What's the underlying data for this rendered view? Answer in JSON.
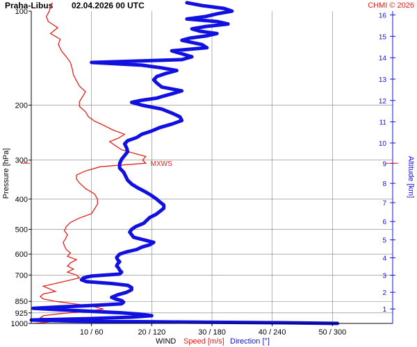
{
  "header": {
    "station": "Praha-Libus",
    "datetime": "02.04.2026 00 UTC",
    "copyright": "CHMI © 2026"
  },
  "colors": {
    "speed": "#e0201c",
    "direction": "#1010e0",
    "grid": "#7d7d7d",
    "frame": "#000000"
  },
  "chart_data": {
    "type": "line",
    "ylabel": "Pressure [hPa]",
    "y2label": "Altitude [km]",
    "xlabel": {
      "wind": "WIND",
      "speed": "Speed [m/s]",
      "direction": "Direction [°]"
    },
    "pressure_ticks": [
      "100",
      "200",
      "300",
      "400",
      "500",
      "600",
      "700",
      "850",
      "925",
      "1000"
    ],
    "x_ticks": [
      "10 / 60",
      "20 / 120",
      "30 / 180",
      "40 / 240",
      "50 / 300"
    ],
    "altitude_ticks": [
      "1",
      "2",
      "3",
      "4",
      "5",
      "6",
      "7",
      "8",
      "9",
      "10",
      "11",
      "12",
      "13",
      "14",
      "15",
      "16"
    ],
    "speed_xlim": [
      0,
      60
    ],
    "direction_xlim": [
      0,
      360
    ],
    "annotation": {
      "text": "MXWS",
      "pressure": 307,
      "speed": 19
    },
    "series": [
      {
        "name": "Speed [m/s]",
        "points": [
          [
            1000,
            0.5
          ],
          [
            990,
            3
          ],
          [
            975,
            4
          ],
          [
            960,
            1.5
          ],
          [
            945,
            2
          ],
          [
            930,
            5
          ],
          [
            915,
            9
          ],
          [
            900,
            12
          ],
          [
            880,
            10
          ],
          [
            865,
            7
          ],
          [
            850,
            4
          ],
          [
            835,
            2
          ],
          [
            820,
            1.5
          ],
          [
            805,
            2
          ],
          [
            790,
            4
          ],
          [
            775,
            3
          ],
          [
            760,
            2
          ],
          [
            745,
            4
          ],
          [
            730,
            6
          ],
          [
            715,
            8
          ],
          [
            700,
            7.5
          ],
          [
            685,
            6
          ],
          [
            670,
            7
          ],
          [
            655,
            6
          ],
          [
            640,
            6.5
          ],
          [
            625,
            7.5
          ],
          [
            610,
            6
          ],
          [
            595,
            6.5
          ],
          [
            580,
            5.8
          ],
          [
            565,
            5.5
          ],
          [
            550,
            5.3
          ],
          [
            535,
            5.7
          ],
          [
            520,
            6
          ],
          [
            505,
            5.5
          ],
          [
            490,
            5.8
          ],
          [
            475,
            6.5
          ],
          [
            460,
            8
          ],
          [
            445,
            10
          ],
          [
            430,
            10.5
          ],
          [
            415,
            11
          ],
          [
            400,
            11
          ],
          [
            385,
            10.5
          ],
          [
            370,
            9
          ],
          [
            355,
            8
          ],
          [
            345,
            7.5
          ],
          [
            335,
            7.5
          ],
          [
            325,
            9
          ],
          [
            315,
            11.5
          ],
          [
            307,
            19
          ],
          [
            300,
            18.5
          ],
          [
            292,
            19
          ],
          [
            285,
            17
          ],
          [
            278,
            15
          ],
          [
            270,
            14
          ],
          [
            262,
            13
          ],
          [
            255,
            14.5
          ],
          [
            248,
            15.5
          ],
          [
            240,
            13.5
          ],
          [
            232,
            12
          ],
          [
            225,
            10.5
          ],
          [
            218,
            9.5
          ],
          [
            210,
            9
          ],
          [
            202,
            8
          ],
          [
            195,
            8
          ],
          [
            188,
            8.5
          ],
          [
            181,
            9
          ],
          [
            174,
            8
          ],
          [
            167,
            7.5
          ],
          [
            160,
            7
          ],
          [
            153,
            6.8
          ],
          [
            146,
            6.5
          ],
          [
            140,
            5.8
          ],
          [
            134,
            5
          ],
          [
            128,
            4.5
          ],
          [
            123,
            4.8
          ],
          [
            118,
            3.2
          ],
          [
            113,
            4.4
          ],
          [
            108,
            2.8
          ],
          [
            104,
            2.5
          ],
          [
            100,
            3
          ],
          [
            97,
            3.2
          ],
          [
            94,
            3.5
          ]
        ]
      },
      {
        "name": "Direction [°]",
        "points": [
          [
            1000,
            305
          ],
          [
            995,
            250
          ],
          [
            990,
            150
          ],
          [
            983,
            40
          ],
          [
            975,
            0
          ],
          [
            965,
            60
          ],
          [
            955,
            100
          ],
          [
            945,
            120
          ],
          [
            935,
            110
          ],
          [
            925,
            90
          ],
          [
            915,
            60
          ],
          [
            905,
            30
          ],
          [
            895,
            2
          ],
          [
            885,
            30
          ],
          [
            875,
            65
          ],
          [
            865,
            90
          ],
          [
            855,
            92
          ],
          [
            845,
            90
          ],
          [
            835,
            84
          ],
          [
            825,
            80
          ],
          [
            810,
            86
          ],
          [
            795,
            95
          ],
          [
            780,
            100
          ],
          [
            768,
            100
          ],
          [
            755,
            96
          ],
          [
            745,
            80
          ],
          [
            735,
            55
          ],
          [
            725,
            50
          ],
          [
            715,
            52
          ],
          [
            705,
            60
          ],
          [
            695,
            88
          ],
          [
            685,
            90
          ],
          [
            675,
            88
          ],
          [
            665,
            87
          ],
          [
            655,
            85
          ],
          [
            645,
            86
          ],
          [
            635,
            88
          ],
          [
            625,
            86
          ],
          [
            615,
            85
          ],
          [
            600,
            88
          ],
          [
            590,
            95
          ],
          [
            580,
            105
          ],
          [
            570,
            110
          ],
          [
            560,
            118
          ],
          [
            550,
            122
          ],
          [
            540,
            112
          ],
          [
            530,
            102
          ],
          [
            520,
            100
          ],
          [
            510,
            98
          ],
          [
            500,
            100
          ],
          [
            490,
            104
          ],
          [
            478,
            112
          ],
          [
            468,
            115
          ],
          [
            458,
            118
          ],
          [
            448,
            124
          ],
          [
            438,
            128
          ],
          [
            428,
            132
          ],
          [
            418,
            132
          ],
          [
            408,
            128
          ],
          [
            398,
            124
          ],
          [
            388,
            119
          ],
          [
            378,
            113
          ],
          [
            368,
            106
          ],
          [
            358,
            100
          ],
          [
            348,
            96
          ],
          [
            338,
            94
          ],
          [
            328,
            92
          ],
          [
            318,
            88
          ],
          [
            308,
            88
          ],
          [
            298,
            90
          ],
          [
            290,
            93
          ],
          [
            282,
            96
          ],
          [
            274,
            95
          ],
          [
            266,
            93
          ],
          [
            260,
            96
          ],
          [
            254,
            105
          ],
          [
            248,
            110
          ],
          [
            242,
            120
          ],
          [
            236,
            128
          ],
          [
            230,
            140
          ],
          [
            224,
            150
          ],
          [
            218,
            148
          ],
          [
            212,
            140
          ],
          [
            206,
            130
          ],
          [
            200,
            110
          ],
          [
            196,
            100
          ],
          [
            193,
            110
          ],
          [
            190,
            125
          ],
          [
            187,
            132
          ],
          [
            184,
            140
          ],
          [
            180,
            150
          ],
          [
            175,
            130
          ],
          [
            170,
            125
          ],
          [
            166,
            122
          ],
          [
            162,
            125
          ],
          [
            158,
            135
          ],
          [
            155,
            145
          ],
          [
            152,
            130
          ],
          [
            149,
            110
          ],
          [
            146,
            60
          ],
          [
            143,
            150
          ],
          [
            140,
            160
          ],
          [
            137,
            150
          ],
          [
            134,
            140
          ],
          [
            131,
            175
          ],
          [
            128,
            170
          ],
          [
            126,
            160
          ],
          [
            124,
            150
          ],
          [
            122,
            158
          ],
          [
            120,
            175
          ],
          [
            118,
            185
          ],
          [
            116,
            168
          ],
          [
            114,
            160
          ],
          [
            112,
            174
          ],
          [
            110,
            196
          ],
          [
            108,
            185
          ],
          [
            106,
            155
          ],
          [
            104,
            174
          ],
          [
            102,
            185
          ],
          [
            100,
            200
          ],
          [
            98,
            192
          ],
          [
            96,
            170
          ],
          [
            94,
            155
          ]
        ]
      }
    ]
  }
}
